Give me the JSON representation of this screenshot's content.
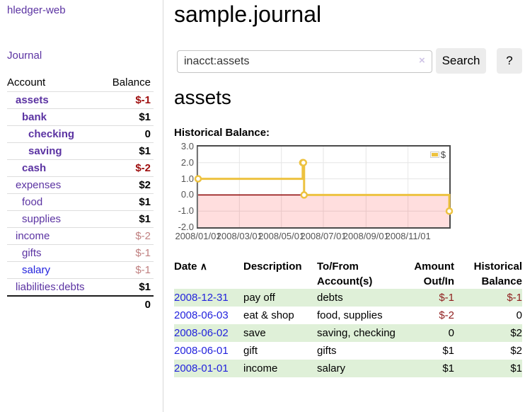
{
  "app_title": "hledger-web",
  "sidebar": {
    "journal_link": "Journal",
    "account_header": "Account",
    "balance_header": "Balance",
    "accounts": [
      {
        "name": "assets",
        "balance": "$-1",
        "indent": 1,
        "bold": true,
        "neg": "strong",
        "blue": false
      },
      {
        "name": "bank",
        "balance": "$1",
        "indent": 2,
        "bold": true,
        "neg": null,
        "blue": false
      },
      {
        "name": "checking",
        "balance": "0",
        "indent": 3,
        "bold": true,
        "neg": null,
        "blue": false
      },
      {
        "name": "saving",
        "balance": "$1",
        "indent": 3,
        "bold": true,
        "neg": null,
        "blue": false
      },
      {
        "name": "cash",
        "balance": "$-2",
        "indent": 2,
        "bold": true,
        "neg": "strong",
        "blue": false
      },
      {
        "name": "expenses",
        "balance": "$2",
        "indent": 1,
        "bold": false,
        "neg": null,
        "blue": false
      },
      {
        "name": "food",
        "balance": "$1",
        "indent": 2,
        "bold": false,
        "neg": null,
        "blue": false
      },
      {
        "name": "supplies",
        "balance": "$1",
        "indent": 2,
        "bold": false,
        "neg": null,
        "blue": false
      },
      {
        "name": "income",
        "balance": "$-2",
        "indent": 1,
        "bold": false,
        "neg": "muted",
        "blue": false
      },
      {
        "name": "gifts",
        "balance": "$-1",
        "indent": 2,
        "bold": false,
        "neg": "muted",
        "blue": false
      },
      {
        "name": "salary",
        "balance": "$-1",
        "indent": 2,
        "bold": false,
        "neg": "muted",
        "blue": true
      },
      {
        "name": "liabilities:debts",
        "balance": "$1",
        "indent": 1,
        "bold": false,
        "neg": null,
        "blue": false
      }
    ],
    "total": "0"
  },
  "main": {
    "title": "sample.journal",
    "search": {
      "value": "inacct:assets",
      "clear_icon": "×",
      "search_button": "Search",
      "help_button": "?"
    },
    "account_heading": "assets",
    "chart_label": "Historical Balance:"
  },
  "register": {
    "sort_icon": "∧",
    "headers": [
      {
        "l1": "Date",
        "l2": ""
      },
      {
        "l1": "Description",
        "l2": ""
      },
      {
        "l1": "To/From",
        "l2": "Account(s)"
      },
      {
        "l1": "Amount",
        "l2": "Out/In"
      },
      {
        "l1": "Historical",
        "l2": "Balance"
      }
    ],
    "rows": [
      {
        "date": "2008-12-31",
        "description": "pay off",
        "accounts": "debts",
        "amount": "$-1",
        "balance": "$-1",
        "amount_neg": true,
        "balance_neg": true
      },
      {
        "date": "2008-06-03",
        "description": "eat & shop",
        "accounts": "food, supplies",
        "amount": "$-2",
        "balance": "0",
        "amount_neg": true,
        "balance_neg": false
      },
      {
        "date": "2008-06-02",
        "description": "save",
        "accounts": "saving, checking",
        "amount": "0",
        "balance": "$2",
        "amount_neg": false,
        "balance_neg": false
      },
      {
        "date": "2008-06-01",
        "description": "gift",
        "accounts": "gifts",
        "amount": "$1",
        "balance": "$2",
        "amount_neg": false,
        "balance_neg": false
      },
      {
        "date": "2008-01-01",
        "description": "income",
        "accounts": "salary",
        "amount": "$1",
        "balance": "$1",
        "amount_neg": false,
        "balance_neg": false
      }
    ]
  },
  "chart_data": {
    "type": "line",
    "title": "Historical Balance:",
    "step": true,
    "series": [
      {
        "name": "$",
        "color": "#edc240",
        "points": [
          {
            "date": "2008-01-01",
            "x": 0,
            "y": 1
          },
          {
            "date": "2008-06-01",
            "x": 152,
            "y": 2
          },
          {
            "date": "2008-06-02",
            "x": 153,
            "y": 2
          },
          {
            "date": "2008-06-03",
            "x": 154,
            "y": 0
          },
          {
            "date": "2008-12-31",
            "x": 365,
            "y": -1
          }
        ]
      }
    ],
    "xlim": [
      0,
      365
    ],
    "ylim": [
      -2,
      3
    ],
    "xticks": [
      {
        "x": 0,
        "label": "2008/01/01"
      },
      {
        "x": 60,
        "label": "2008/03/01"
      },
      {
        "x": 121,
        "label": "2008/05/01"
      },
      {
        "x": 182,
        "label": "2008/07/01"
      },
      {
        "x": 244,
        "label": "2008/09/01"
      },
      {
        "x": 305,
        "label": "2008/11/01"
      }
    ],
    "yticks": [
      {
        "y": 3,
        "label": "3.0"
      },
      {
        "y": 2,
        "label": "2.0"
      },
      {
        "y": 1,
        "label": "1.0"
      },
      {
        "y": 0,
        "label": "0.0"
      },
      {
        "y": -1,
        "label": "-1.0"
      },
      {
        "y": -2,
        "label": "-2.0"
      }
    ],
    "legend": {
      "label": "$",
      "position": "top-right"
    },
    "grid_color": "#e6e6e6",
    "zero_line_color": "#8b0000",
    "negative_fill": "rgba(255,0,0,0.13)",
    "marker_fill": "#ffffff"
  },
  "colors": {
    "purple_link": "#5b33a2",
    "blue_link": "#2222dd",
    "negative_strong": "#9e0d0d",
    "negative_muted": "#c08080",
    "table_negative": "#8f1d1d",
    "row_stripe_green": "#dff0d8",
    "series_yellow": "#edc240",
    "button_bg": "#ececec"
  }
}
